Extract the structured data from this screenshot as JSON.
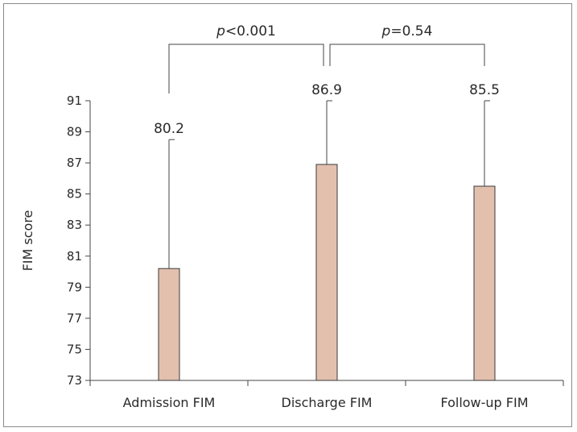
{
  "chart_data": {
    "type": "bar",
    "title": "",
    "xlabel": "",
    "ylabel": "FIM score",
    "ylim": [
      73,
      91
    ],
    "yticks": [
      73,
      75,
      77,
      79,
      81,
      83,
      85,
      87,
      89,
      91
    ],
    "categories": [
      "Admission FIM",
      "Discharge FIM",
      "Follow-up FIM"
    ],
    "values": [
      80.2,
      86.9,
      85.5
    ],
    "value_labels": [
      "80.2",
      "86.9",
      "85.5"
    ],
    "error_upper": [
      88.5,
      91.0,
      91.0
    ],
    "bar_color": "#e3c0ae",
    "bar_edge_color": "#3a3a3a",
    "comparisons": [
      {
        "from": 0,
        "to": 1,
        "p_symbol": "p",
        "p_value": "<0.001"
      },
      {
        "from": 1,
        "to": 2,
        "p_symbol": "p",
        "p_value": "=0.54"
      }
    ]
  }
}
